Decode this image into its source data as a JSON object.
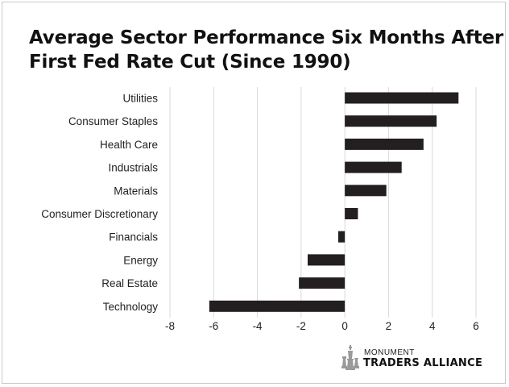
{
  "chart_data": {
    "type": "bar",
    "orientation": "horizontal",
    "title": "Average Sector Performance Six Months After First Fed Rate Cut (Since 1990)",
    "title_lines": [
      "Average Sector Performance Six Months After",
      "First Fed Rate Cut (Since 1990)"
    ],
    "categories": [
      "Utilities",
      "Consumer Staples",
      "Health Care",
      "Industrials",
      "Materials",
      "Consumer Discretionary",
      "Financials",
      "Energy",
      "Real Estate",
      "Technology"
    ],
    "values": [
      5.2,
      4.2,
      3.6,
      2.6,
      1.9,
      0.6,
      -0.3,
      -1.7,
      -2.1,
      -6.2
    ],
    "xlim": [
      -8,
      6
    ],
    "xticks": [
      "-8",
      "-6",
      "-4",
      "-2",
      "0",
      "2",
      "4",
      "6"
    ],
    "grid": "vertical",
    "bar_color": "#231f20",
    "grid_color": "#d9d9d9"
  },
  "logo": {
    "small_text": "MONUMENT",
    "big_text": "TRADERS ALLIANCE",
    "icon": "chess-pieces-icon"
  }
}
